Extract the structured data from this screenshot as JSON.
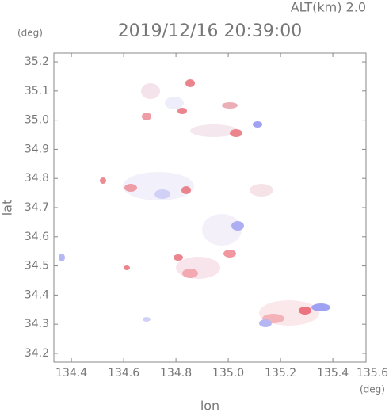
{
  "chart_data": {
    "type": "radar-map",
    "title": "2019/12/16 20:39:00",
    "subtitle": "ALT(km) 2.0",
    "x_label": "lon",
    "y_label": "lat",
    "x_unit": "(deg)",
    "y_unit": "(deg)",
    "xlim": [
      134.333,
      135.527
    ],
    "ylim": [
      34.17,
      35.23
    ],
    "xticks": [
      134.4,
      134.6,
      134.8,
      {
        "value": 135,
        "label": "135.0"
      },
      135.2,
      135.4,
      135.6
    ],
    "yticks": [
      34.2,
      34.3,
      34.4,
      34.5,
      34.6,
      34.7,
      34.8,
      34.9,
      {
        "value": 35,
        "label": "35.0"
      },
      35.1,
      35.2
    ]
  }
}
